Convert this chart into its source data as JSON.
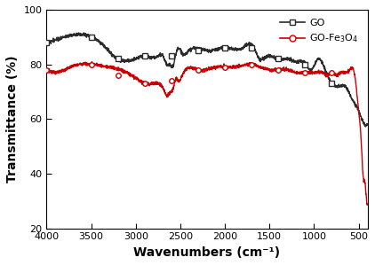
{
  "title": "",
  "xlabel": "Wavenumbers (cm⁻¹)",
  "ylabel": "Transmittance (%)",
  "xlim": [
    4000,
    400
  ],
  "ylim": [
    20,
    100
  ],
  "xticks": [
    4000,
    3500,
    3000,
    2500,
    2000,
    1500,
    1000,
    500
  ],
  "yticks": [
    20,
    40,
    60,
    80,
    100
  ],
  "go_color": "#2b2b2b",
  "fe_color": "#cc0000",
  "go_label": "GO",
  "fe_label": "GO-Fe$_3$O$_4$",
  "go_x": [
    4000,
    3800,
    3650,
    3400,
    3200,
    3000,
    2900,
    2750,
    2650,
    2600,
    2560,
    2520,
    2480,
    2400,
    2200,
    2000,
    1800,
    1650,
    1600,
    1500,
    1400,
    1300,
    1200,
    1100,
    1050,
    1000,
    950,
    900,
    850,
    800,
    750,
    700,
    650,
    600,
    550,
    500,
    450,
    400
  ],
  "go_y": [
    88,
    90,
    91,
    88,
    82,
    82,
    83,
    83,
    84,
    82,
    84,
    86,
    84,
    85,
    85,
    86,
    86,
    87,
    84,
    83,
    82,
    82,
    81,
    81,
    80,
    80,
    82,
    80,
    76,
    73,
    72,
    72,
    72,
    69,
    66,
    63,
    59,
    58
  ],
  "go_marker_x": [
    4000,
    3500,
    3200,
    2900,
    2600,
    2300,
    2000,
    1700,
    1400,
    1100,
    800
  ],
  "go_marker_y": [
    88,
    90,
    82,
    83,
    83,
    85,
    86,
    86,
    82,
    80,
    73
  ],
  "fe_x": [
    4000,
    3800,
    3650,
    3500,
    3300,
    3100,
    3000,
    2900,
    2750,
    2650,
    2600,
    2560,
    2520,
    2480,
    2300,
    2100,
    1900,
    1700,
    1600,
    1500,
    1400,
    1300,
    1200,
    1100,
    1050,
    1000,
    950,
    900,
    850,
    800,
    750,
    700,
    650,
    600,
    550,
    500,
    470,
    450,
    430,
    410,
    400
  ],
  "fe_y": [
    78,
    78,
    80,
    80,
    79,
    77,
    75,
    73,
    73,
    72,
    73,
    76,
    74,
    76,
    78,
    79,
    79,
    80,
    79,
    78,
    78,
    78,
    77,
    77,
    77,
    77,
    77,
    77,
    76,
    77,
    76,
    77,
    77,
    78,
    77,
    63,
    51,
    39,
    37,
    30,
    29
  ],
  "fe_marker_x": [
    4000,
    3500,
    3200,
    2900,
    2600,
    2300,
    2000,
    1700,
    1400,
    1100,
    800
  ],
  "fe_marker_y": [
    78,
    80,
    76,
    73,
    74,
    78,
    79,
    80,
    78,
    77,
    77
  ]
}
